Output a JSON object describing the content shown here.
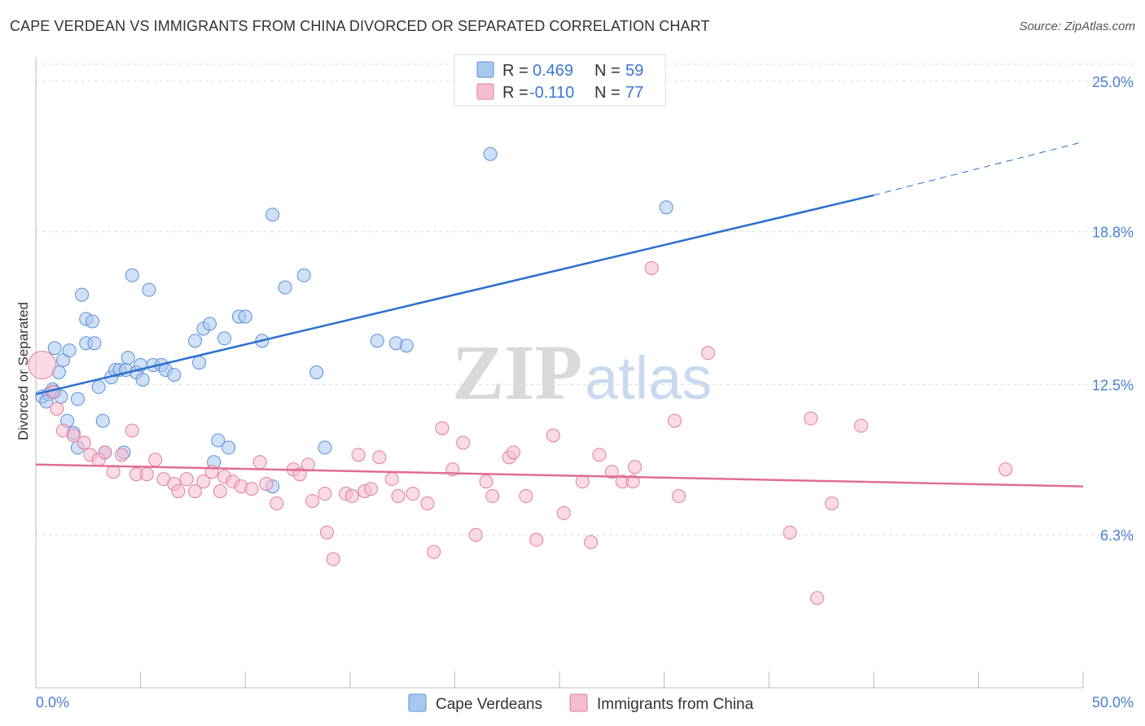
{
  "title": "CAPE VERDEAN VS IMMIGRANTS FROM CHINA DIVORCED OR SEPARATED CORRELATION CHART",
  "source": "Source: ZipAtlas.com",
  "watermark": {
    "zip": "ZIP",
    "atlas": "atlas"
  },
  "colors": {
    "blue_fill": "#a9c8f0",
    "blue_stroke": "#5b8fd6",
    "blue_line": "#2a6fcf",
    "pink_fill": "#f6bcd0",
    "pink_stroke": "#e07ea0",
    "pink_line": "#e06d96",
    "tick_text": "#4a7fd0",
    "grid": "#dddddd"
  },
  "legend": {
    "rows": [
      {
        "r_label": "R =",
        "r_value": "0.469",
        "n_label": "N =",
        "n_value": "59"
      },
      {
        "r_label": "R =",
        "r_value": "-0.110",
        "n_label": "N =",
        "n_value": "77"
      }
    ]
  },
  "chart_data": {
    "type": "scatter",
    "title": "CAPE VERDEAN VS IMMIGRANTS FROM CHINA DIVORCED OR SEPARATED CORRELATION CHART",
    "xlabel": "",
    "ylabel": "Divorced or Separated",
    "xlim": [
      0,
      50
    ],
    "ylim": [
      0,
      26
    ],
    "x_tick_labels": [
      "0.0%",
      "50.0%"
    ],
    "y_ticks": [
      6.3,
      12.5,
      18.8,
      25.0
    ],
    "y_tick_labels": [
      "6.3%",
      "12.5%",
      "18.8%",
      "25.0%"
    ],
    "grid": "horizontal-dashed",
    "legend_position": "top-center",
    "series": [
      {
        "name": "Cape Verdeans",
        "color": "#a9c8f0",
        "trend": {
          "x": [
            0,
            40
          ],
          "y": [
            12.1,
            20.3
          ],
          "dashed_to": [
            50,
            22.5
          ]
        },
        "points": [
          [
            0.3,
            12.0
          ],
          [
            0.6,
            12.1
          ],
          [
            0.8,
            12.3
          ],
          [
            0.9,
            14.0
          ],
          [
            1.1,
            13.0
          ],
          [
            1.3,
            13.5
          ],
          [
            0.5,
            11.8
          ],
          [
            1.5,
            11.0
          ],
          [
            1.6,
            13.9
          ],
          [
            1.8,
            10.5
          ],
          [
            2.0,
            9.9
          ],
          [
            2.0,
            11.9
          ],
          [
            2.2,
            16.2
          ],
          [
            2.4,
            14.2
          ],
          [
            2.4,
            15.2
          ],
          [
            2.7,
            15.1
          ],
          [
            2.8,
            14.2
          ],
          [
            3.0,
            12.4
          ],
          [
            3.2,
            11.0
          ],
          [
            3.3,
            9.7
          ],
          [
            3.6,
            12.8
          ],
          [
            3.8,
            13.1
          ],
          [
            4.0,
            13.1
          ],
          [
            4.2,
            9.7
          ],
          [
            4.3,
            13.1
          ],
          [
            4.4,
            13.6
          ],
          [
            4.6,
            17.0
          ],
          [
            4.8,
            13.0
          ],
          [
            5.0,
            13.3
          ],
          [
            5.1,
            12.7
          ],
          [
            5.4,
            16.4
          ],
          [
            5.6,
            13.3
          ],
          [
            6.0,
            13.3
          ],
          [
            6.2,
            13.1
          ],
          [
            6.6,
            12.9
          ],
          [
            7.6,
            14.3
          ],
          [
            7.8,
            13.4
          ],
          [
            8.0,
            14.8
          ],
          [
            8.3,
            15.0
          ],
          [
            8.5,
            9.3
          ],
          [
            8.7,
            10.2
          ],
          [
            9.0,
            14.4
          ],
          [
            9.2,
            9.9
          ],
          [
            9.7,
            15.3
          ],
          [
            10.0,
            15.3
          ],
          [
            10.8,
            14.3
          ],
          [
            11.3,
            8.3
          ],
          [
            11.3,
            19.5
          ],
          [
            11.9,
            16.5
          ],
          [
            12.8,
            17.0
          ],
          [
            13.4,
            13.0
          ],
          [
            13.8,
            9.9
          ],
          [
            16.3,
            14.3
          ],
          [
            17.2,
            14.2
          ],
          [
            17.7,
            14.1
          ],
          [
            21.7,
            22.0
          ],
          [
            30.1,
            19.8
          ],
          [
            0.9,
            12.2
          ],
          [
            1.2,
            12.0
          ]
        ]
      },
      {
        "name": "Immigrants from China",
        "color": "#f6bcd0",
        "trend": {
          "x": [
            0,
            50
          ],
          "y": [
            9.2,
            8.3
          ]
        },
        "points": [
          [
            0.3,
            13.3
          ],
          [
            0.8,
            12.2
          ],
          [
            1.0,
            11.5
          ],
          [
            1.3,
            10.6
          ],
          [
            1.8,
            10.4
          ],
          [
            2.3,
            10.1
          ],
          [
            2.6,
            9.6
          ],
          [
            3.0,
            9.4
          ],
          [
            3.3,
            9.7
          ],
          [
            3.7,
            8.9
          ],
          [
            4.1,
            9.6
          ],
          [
            4.6,
            10.6
          ],
          [
            4.8,
            8.8
          ],
          [
            5.3,
            8.8
          ],
          [
            5.7,
            9.4
          ],
          [
            6.1,
            8.6
          ],
          [
            6.6,
            8.4
          ],
          [
            6.8,
            8.1
          ],
          [
            7.2,
            8.6
          ],
          [
            7.6,
            8.1
          ],
          [
            8.0,
            8.5
          ],
          [
            8.4,
            8.9
          ],
          [
            8.8,
            8.1
          ],
          [
            9.0,
            8.7
          ],
          [
            9.4,
            8.5
          ],
          [
            9.8,
            8.3
          ],
          [
            10.3,
            8.2
          ],
          [
            10.7,
            9.3
          ],
          [
            11.0,
            8.4
          ],
          [
            11.5,
            7.6
          ],
          [
            12.3,
            9.0
          ],
          [
            12.6,
            8.8
          ],
          [
            13.0,
            9.2
          ],
          [
            13.2,
            7.7
          ],
          [
            13.8,
            8.0
          ],
          [
            13.9,
            6.4
          ],
          [
            14.2,
            5.3
          ],
          [
            14.8,
            8.0
          ],
          [
            15.1,
            7.9
          ],
          [
            15.4,
            9.6
          ],
          [
            15.7,
            8.1
          ],
          [
            16.0,
            8.2
          ],
          [
            16.4,
            9.5
          ],
          [
            17.0,
            8.6
          ],
          [
            17.3,
            7.9
          ],
          [
            18.0,
            8.0
          ],
          [
            18.7,
            7.6
          ],
          [
            19.0,
            5.6
          ],
          [
            19.4,
            10.7
          ],
          [
            19.9,
            9.0
          ],
          [
            20.4,
            10.1
          ],
          [
            21.0,
            6.3
          ],
          [
            21.5,
            8.5
          ],
          [
            21.8,
            7.9
          ],
          [
            22.6,
            9.5
          ],
          [
            22.8,
            9.7
          ],
          [
            23.4,
            7.9
          ],
          [
            23.9,
            6.1
          ],
          [
            24.7,
            10.4
          ],
          [
            25.2,
            7.2
          ],
          [
            26.1,
            8.5
          ],
          [
            26.5,
            6.0
          ],
          [
            26.9,
            9.6
          ],
          [
            27.5,
            8.9
          ],
          [
            28.0,
            8.5
          ],
          [
            28.5,
            8.5
          ],
          [
            28.6,
            9.1
          ],
          [
            29.4,
            17.3
          ],
          [
            30.5,
            11.0
          ],
          [
            30.7,
            7.9
          ],
          [
            32.1,
            13.8
          ],
          [
            36.0,
            6.4
          ],
          [
            37.0,
            11.1
          ],
          [
            37.3,
            3.7
          ],
          [
            38.0,
            7.6
          ],
          [
            39.4,
            10.8
          ],
          [
            46.3,
            9.0
          ]
        ]
      }
    ]
  },
  "bottom_legend": [
    {
      "label": "Cape Verdeans"
    },
    {
      "label": "Immigrants from China"
    }
  ]
}
